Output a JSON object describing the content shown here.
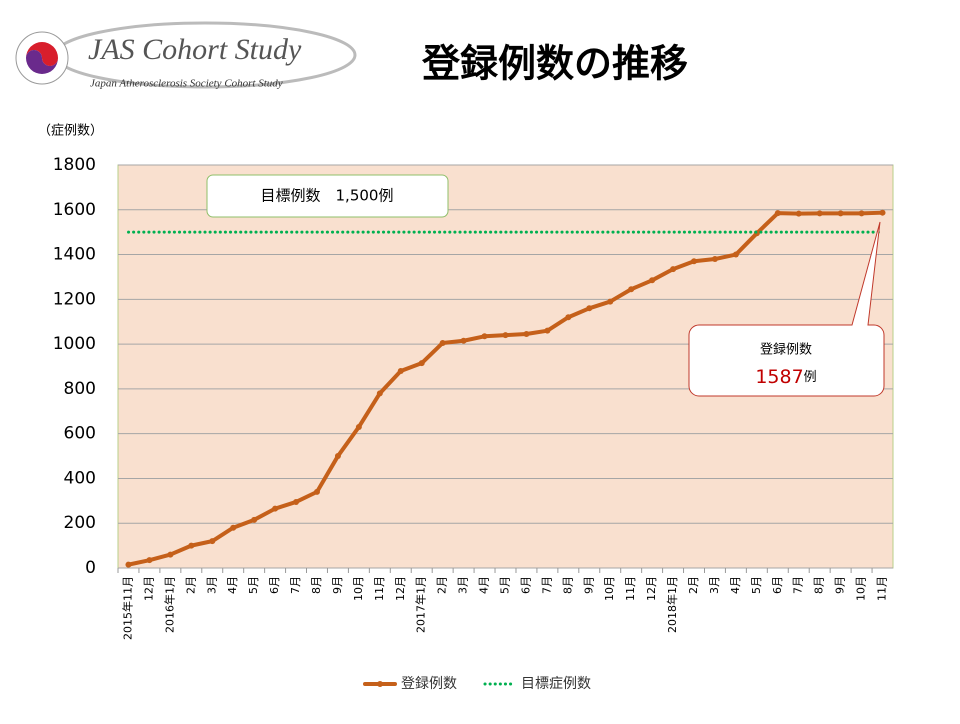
{
  "header": {
    "logo_title": "JAS Cohort Study",
    "logo_subtitle": "Japan Atherosclerosis Society Cohort Study"
  },
  "chart_data": {
    "type": "line",
    "title": "登録例数の推移",
    "y_label": "（症例数）",
    "categories": [
      "2015年11月",
      "12月",
      "2016年1月",
      "2月",
      "3月",
      "4月",
      "5月",
      "6月",
      "7月",
      "8月",
      "9月",
      "10月",
      "11月",
      "12月",
      "2017年1月",
      "2月",
      "3月",
      "4月",
      "5月",
      "6月",
      "7月",
      "8月",
      "9月",
      "10月",
      "11月",
      "12月",
      "2018年1月",
      "2月",
      "3月",
      "4月",
      "5月",
      "6月",
      "7月",
      "8月",
      "9月",
      "10月",
      "11月"
    ],
    "series": [
      {
        "name": "登録例数",
        "color": "#c5601a",
        "style": "solid",
        "values": [
          15,
          35,
          60,
          100,
          120,
          180,
          215,
          265,
          295,
          340,
          500,
          630,
          780,
          880,
          915,
          1005,
          1015,
          1035,
          1040,
          1045,
          1060,
          1120,
          1160,
          1190,
          1245,
          1285,
          1335,
          1370,
          1380,
          1400,
          1495,
          1585,
          1583,
          1584,
          1584,
          1584,
          1587
        ]
      },
      {
        "name": "目標症例数",
        "color": "#00b050",
        "style": "dotted",
        "values": [
          1500,
          1500,
          1500,
          1500,
          1500,
          1500,
          1500,
          1500,
          1500,
          1500,
          1500,
          1500,
          1500,
          1500,
          1500,
          1500,
          1500,
          1500,
          1500,
          1500,
          1500,
          1500,
          1500,
          1500,
          1500,
          1500,
          1500,
          1500,
          1500,
          1500,
          1500,
          1500,
          1500,
          1500,
          1500,
          1500,
          1500
        ]
      }
    ],
    "ylim": [
      0,
      1800
    ],
    "yticks": [
      0,
      200,
      400,
      600,
      800,
      1000,
      1200,
      1400,
      1600,
      1800
    ],
    "grid": true,
    "legend": "bottom",
    "annotations": {
      "target": "目標例数　1,500例",
      "callout_title": "登録例数",
      "callout_value": 1587,
      "callout_unit": "例"
    }
  }
}
